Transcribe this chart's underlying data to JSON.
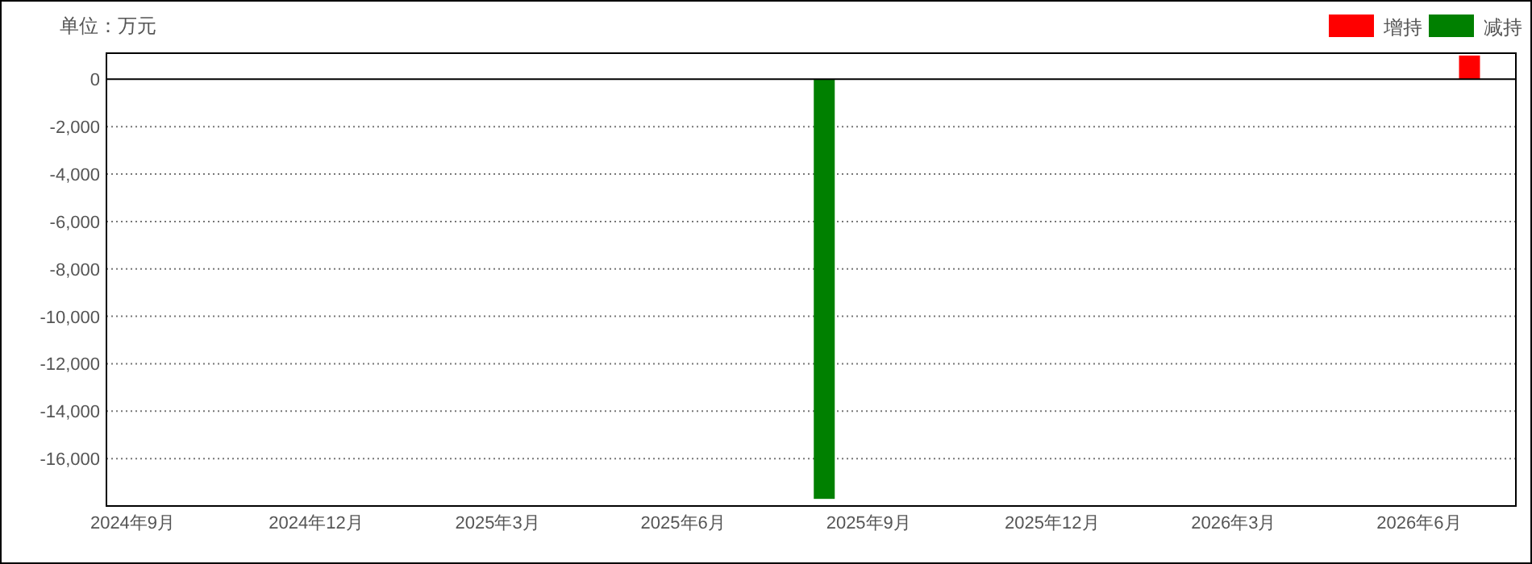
{
  "chart_data": {
    "type": "bar",
    "ylabel": "单位：万元",
    "series": [
      {
        "name": "增持",
        "color": "#ff0000",
        "x": [
          "2026-06-26"
        ],
        "values": [
          1000
        ]
      },
      {
        "name": "减持",
        "color": "#008000",
        "x": [
          "2025-08-10"
        ],
        "values": [
          -17700
        ]
      }
    ],
    "xlim": [
      "2024-08-19",
      "2026-07-19"
    ],
    "xticks": [
      {
        "value": "2024-09-01",
        "label": "2024年9月"
      },
      {
        "value": "2024-12-01",
        "label": "2024年12月"
      },
      {
        "value": "2025-03-01",
        "label": "2025年3月"
      },
      {
        "value": "2025-06-01",
        "label": "2025年6月"
      },
      {
        "value": "2025-09-01",
        "label": "2025年9月"
      },
      {
        "value": "2025-12-01",
        "label": "2025年12月"
      },
      {
        "value": "2026-03-01",
        "label": "2026年3月"
      },
      {
        "value": "2026-06-01",
        "label": "2026年6月"
      }
    ],
    "ylim": [
      -18000,
      1100
    ],
    "yticks": [
      0,
      {
        "value": -2000,
        "label": "-2,000"
      },
      {
        "value": -4000,
        "label": "-4,000"
      },
      {
        "value": -6000,
        "label": "-6,000"
      },
      {
        "value": -8000,
        "label": "-8,000"
      },
      {
        "value": -10000,
        "label": "-10,000"
      },
      {
        "value": -12000,
        "label": "-12,000"
      },
      {
        "value": -14000,
        "label": "-14,000"
      },
      {
        "value": -16000,
        "label": "-16,000"
      }
    ],
    "grid": "y",
    "legend": "top right"
  }
}
